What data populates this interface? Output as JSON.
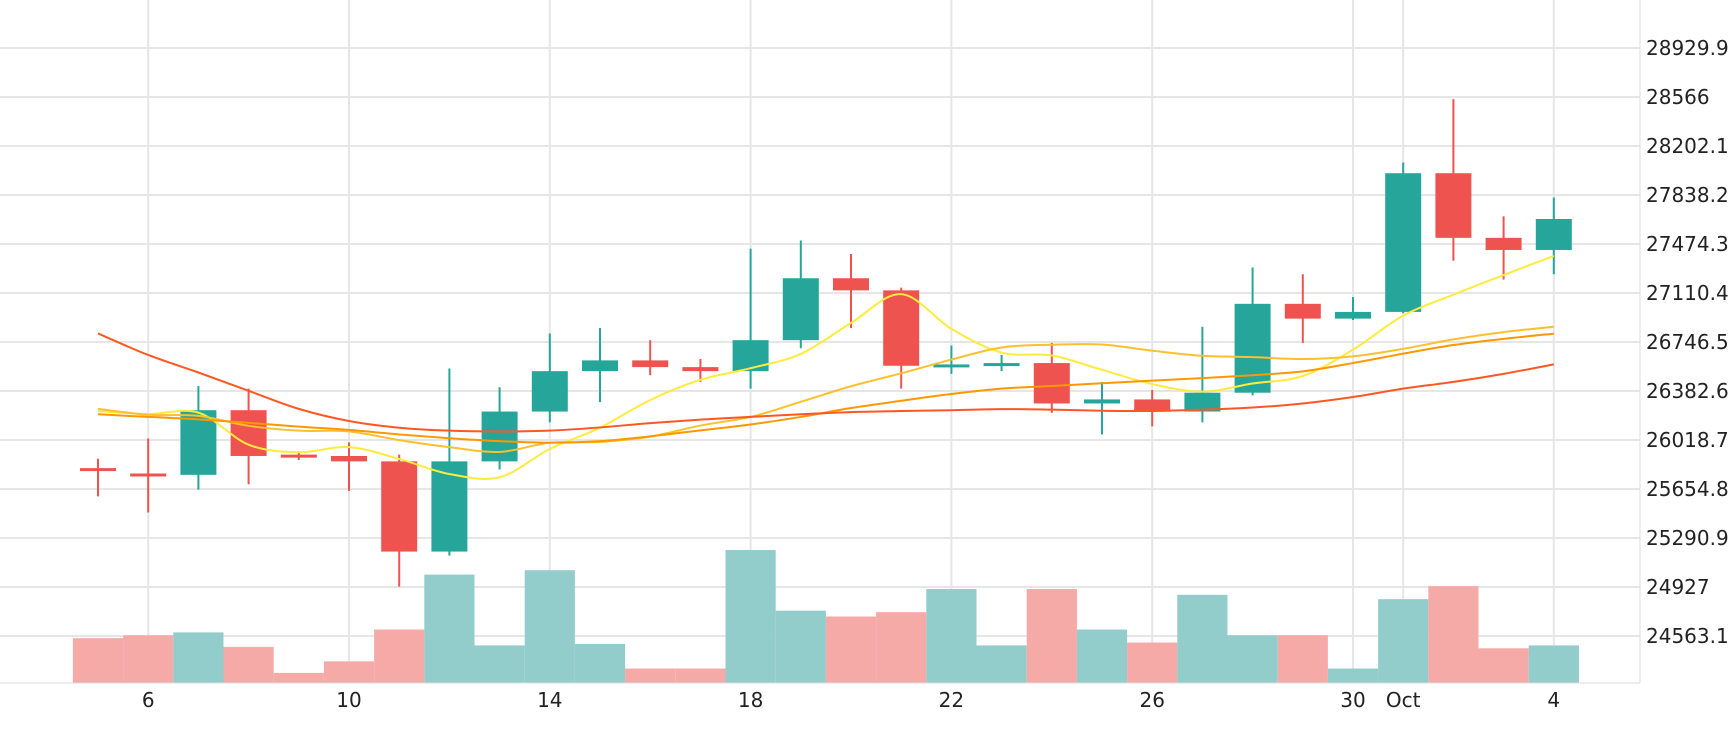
{
  "chart_data": {
    "type": "candlestick",
    "x_tick_labels": [
      {
        "date": "2023-09-06",
        "label": "6"
      },
      {
        "date": "2023-09-10",
        "label": "10"
      },
      {
        "date": "2023-09-14",
        "label": "14"
      },
      {
        "date": "2023-09-18",
        "label": "18"
      },
      {
        "date": "2023-09-22",
        "label": "22"
      },
      {
        "date": "2023-09-26",
        "label": "26"
      },
      {
        "date": "2023-09-30",
        "label": "30"
      },
      {
        "date": "2023-10-01",
        "label": "Oct"
      },
      {
        "date": "2023-10-04",
        "label": "4"
      }
    ],
    "y_tick_labels": [
      "28929.9",
      "28566",
      "28202.1",
      "27838.2",
      "27474.3",
      "27110.4",
      "26746.5",
      "26382.6",
      "26018.7",
      "25654.8",
      "25290.9",
      "24927",
      "24563.1"
    ],
    "grid": true,
    "colors": {
      "up": "#26a69a",
      "down": "#ef5350",
      "volume_up": "#92cdcb",
      "volume_down": "#f5aaa8",
      "ma5": "#ffeb3b",
      "ma10": "#fbc02d",
      "ma20": "#ff9800",
      "ma30": "#ff5722"
    },
    "candles": [
      {
        "date": "2023-09-05",
        "open": 25810,
        "high": 25880,
        "low": 25600,
        "close": 25790,
        "volume": 0.31
      },
      {
        "date": "2023-09-06",
        "open": 25770,
        "high": 26030,
        "low": 25480,
        "close": 25760,
        "volume": 0.33
      },
      {
        "date": "2023-09-07",
        "open": 25760,
        "high": 26420,
        "low": 25650,
        "close": 26240,
        "volume": 0.35
      },
      {
        "date": "2023-09-08",
        "open": 26240,
        "high": 26400,
        "low": 25690,
        "close": 25900,
        "volume": 0.25
      },
      {
        "date": "2023-09-09",
        "open": 25910,
        "high": 25935,
        "low": 25870,
        "close": 25900,
        "volume": 0.07
      },
      {
        "date": "2023-09-10",
        "open": 25900,
        "high": 26000,
        "low": 25640,
        "close": 25860,
        "volume": 0.15
      },
      {
        "date": "2023-09-11",
        "open": 25860,
        "high": 25910,
        "low": 24930,
        "close": 25190,
        "volume": 0.37
      },
      {
        "date": "2023-09-12",
        "open": 25190,
        "high": 26550,
        "low": 25160,
        "close": 25860,
        "volume": 0.75
      },
      {
        "date": "2023-09-13",
        "open": 25860,
        "high": 26410,
        "low": 25800,
        "close": 26230,
        "volume": 0.26
      },
      {
        "date": "2023-09-14",
        "open": 26230,
        "high": 26810,
        "low": 26150,
        "close": 26530,
        "volume": 0.78
      },
      {
        "date": "2023-09-15",
        "open": 26530,
        "high": 26850,
        "low": 26300,
        "close": 26610,
        "volume": 0.27
      },
      {
        "date": "2023-09-16",
        "open": 26610,
        "high": 26760,
        "low": 26500,
        "close": 26560,
        "volume": 0.1
      },
      {
        "date": "2023-09-17",
        "open": 26560,
        "high": 26620,
        "low": 26450,
        "close": 26530,
        "volume": 0.1
      },
      {
        "date": "2023-09-18",
        "open": 26530,
        "high": 27440,
        "low": 26400,
        "close": 26760,
        "volume": 0.92
      },
      {
        "date": "2023-09-19",
        "open": 26760,
        "high": 27500,
        "low": 26700,
        "close": 27220,
        "volume": 0.5
      },
      {
        "date": "2023-09-20",
        "open": 27220,
        "high": 27400,
        "low": 26850,
        "close": 27130,
        "volume": 0.46
      },
      {
        "date": "2023-09-21",
        "open": 27130,
        "high": 27150,
        "low": 26400,
        "close": 26570,
        "volume": 0.49
      },
      {
        "date": "2023-09-22",
        "open": 26570,
        "high": 26720,
        "low": 26510,
        "close": 26580,
        "volume": 0.65
      },
      {
        "date": "2023-09-23",
        "open": 26580,
        "high": 26650,
        "low": 26530,
        "close": 26590,
        "volume": 0.26
      },
      {
        "date": "2023-09-24",
        "open": 26590,
        "high": 26740,
        "low": 26220,
        "close": 26290,
        "volume": 0.65
      },
      {
        "date": "2023-09-25",
        "open": 26290,
        "high": 26450,
        "low": 26060,
        "close": 26320,
        "volume": 0.37
      },
      {
        "date": "2023-09-26",
        "open": 26320,
        "high": 26390,
        "low": 26120,
        "close": 26230,
        "volume": 0.28
      },
      {
        "date": "2023-09-27",
        "open": 26230,
        "high": 26860,
        "low": 26150,
        "close": 26370,
        "volume": 0.61
      },
      {
        "date": "2023-09-28",
        "open": 26370,
        "high": 27300,
        "low": 26350,
        "close": 27030,
        "volume": 0.33
      },
      {
        "date": "2023-09-29",
        "open": 27030,
        "high": 27250,
        "low": 26740,
        "close": 26920,
        "volume": 0.33
      },
      {
        "date": "2023-09-30",
        "open": 26920,
        "high": 27080,
        "low": 26910,
        "close": 26970,
        "volume": 0.1
      },
      {
        "date": "2023-10-01",
        "open": 26970,
        "high": 28080,
        "low": 26960,
        "close": 28000,
        "volume": 0.58
      },
      {
        "date": "2023-10-02",
        "open": 28000,
        "high": 28550,
        "low": 27350,
        "close": 27520,
        "volume": 0.67
      },
      {
        "date": "2023-10-03",
        "open": 27520,
        "high": 27680,
        "low": 27210,
        "close": 27430,
        "volume": 0.24
      },
      {
        "date": "2023-10-04",
        "open": 27430,
        "high": 27820,
        "low": 27250,
        "close": 27660,
        "volume": 0.26
      }
    ],
    "moving_averages": [
      {
        "key": "ma5",
        "values": [
          26232,
          26212,
          26222,
          25984,
          25928,
          25966,
          25878,
          25766,
          25742,
          25952,
          26110,
          26316,
          26466,
          26552,
          26658,
          26888,
          27102,
          26844,
          26668,
          26646,
          26540,
          26434,
          26378,
          26438,
          26494,
          26690,
          26942,
          27098,
          27244,
          27386
        ]
      },
      {
        "key": "ma10",
        "values": [
          26250,
          26206,
          26198,
          26124,
          26088,
          26082,
          26018,
          25966,
          25930,
          25998,
          26004,
          26044,
          26126,
          26190,
          26302,
          26418,
          26514,
          26616,
          26706,
          26726,
          26728,
          26682,
          26644,
          26634,
          26620,
          26640,
          26696,
          26766,
          26820,
          26860
        ]
      },
      {
        "key": "ma20",
        "values": [
          26210,
          26190,
          26172,
          26146,
          26118,
          26094,
          26060,
          26032,
          26010,
          25998,
          26010,
          26046,
          26090,
          26134,
          26190,
          26256,
          26310,
          26360,
          26400,
          26420,
          26440,
          26460,
          26478,
          26500,
          26528,
          26590,
          26660,
          26724,
          26770,
          26808
        ]
      },
      {
        "key": "ma30",
        "values": [
          26810,
          26650,
          26520,
          26384,
          26250,
          26160,
          26110,
          26088,
          26082,
          26088,
          26112,
          26144,
          26170,
          26190,
          26210,
          26226,
          26234,
          26240,
          26248,
          26244,
          26236,
          26234,
          26244,
          26260,
          26290,
          26338,
          26400,
          26450,
          26510,
          26580
        ]
      }
    ]
  }
}
